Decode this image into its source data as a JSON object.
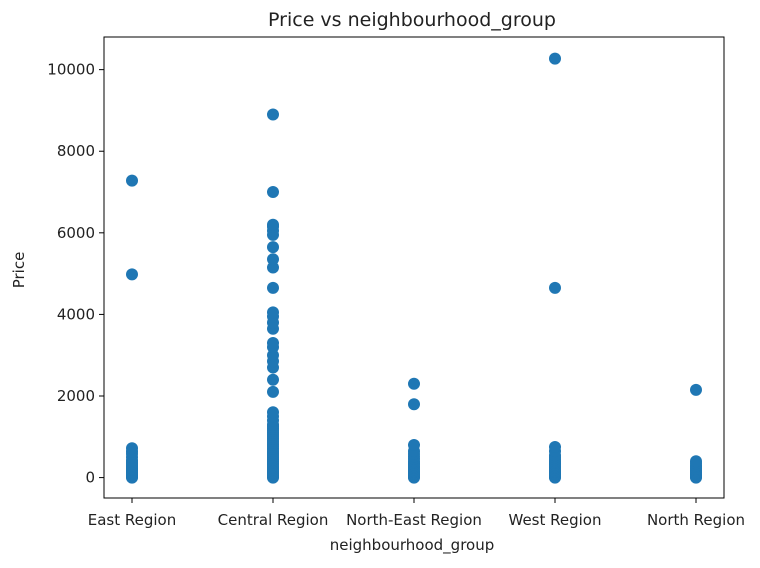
{
  "chart_data": {
    "type": "scatter",
    "title": "Price vs neighbourhood_group",
    "xlabel": "neighbourhood_group",
    "ylabel": "Price",
    "ylim": [
      -500,
      10800
    ],
    "yticks": [
      0,
      2000,
      4000,
      6000,
      8000,
      10000
    ],
    "grid": false,
    "categories": [
      "East Region",
      "Central Region",
      "North-East Region",
      "West Region",
      "North Region"
    ],
    "marker_color": "#1f77b4",
    "points": [
      {
        "x": "East Region",
        "y": [
          0,
          20,
          40,
          60,
          80,
          100,
          120,
          150,
          180,
          200,
          230,
          260,
          300,
          340,
          380,
          420,
          500,
          580,
          640,
          720,
          4980,
          7280
        ]
      },
      {
        "x": "Central Region",
        "y": [
          0,
          30,
          60,
          90,
          120,
          160,
          200,
          240,
          280,
          320,
          360,
          400,
          440,
          480,
          520,
          560,
          600,
          650,
          700,
          750,
          800,
          850,
          900,
          950,
          1000,
          1050,
          1100,
          1150,
          1200,
          1250,
          1300,
          1400,
          1500,
          1600,
          2100,
          2400,
          2700,
          2850,
          3000,
          3200,
          3300,
          3650,
          3800,
          3950,
          4050,
          4650,
          5150,
          5350,
          5650,
          5950,
          6050,
          6150,
          6200,
          7000,
          8900
        ]
      },
      {
        "x": "North-East Region",
        "y": [
          0,
          20,
          40,
          70,
          100,
          130,
          160,
          200,
          240,
          280,
          320,
          360,
          400,
          460,
          520,
          580,
          650,
          800,
          1800,
          2300
        ]
      },
      {
        "x": "West Region",
        "y": [
          0,
          20,
          40,
          70,
          100,
          130,
          160,
          200,
          240,
          280,
          320,
          360,
          400,
          450,
          500,
          550,
          650,
          750,
          4650,
          10270
        ]
      },
      {
        "x": "North Region",
        "y": [
          0,
          20,
          40,
          60,
          90,
          120,
          150,
          180,
          220,
          260,
          300,
          350,
          400,
          2150
        ]
      }
    ]
  }
}
